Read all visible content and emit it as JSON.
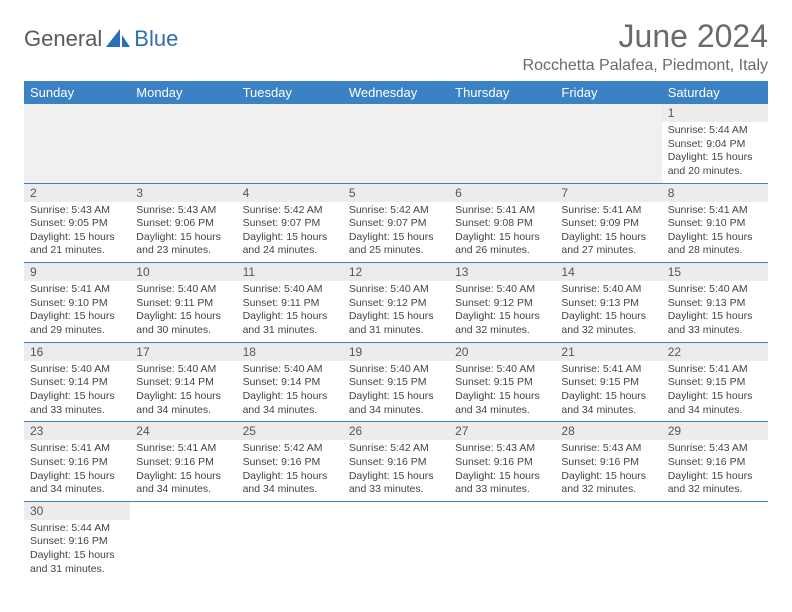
{
  "logo": {
    "text1": "General",
    "text2": "Blue"
  },
  "title": "June 2024",
  "location": "Rocchetta Palafea, Piedmont, Italy",
  "colors": {
    "header_bg": "#3b82c4",
    "header_text": "#ffffff",
    "daynum_bg": "#ececec",
    "cell_border": "#3b82c4",
    "text": "#444444",
    "title_color": "#6a6a6a"
  },
  "weekdays": [
    "Sunday",
    "Monday",
    "Tuesday",
    "Wednesday",
    "Thursday",
    "Friday",
    "Saturday"
  ],
  "days": [
    {
      "n": 1,
      "sr": "5:44 AM",
      "ss": "9:04 PM",
      "dl": "15 hours and 20 minutes."
    },
    {
      "n": 2,
      "sr": "5:43 AM",
      "ss": "9:05 PM",
      "dl": "15 hours and 21 minutes."
    },
    {
      "n": 3,
      "sr": "5:43 AM",
      "ss": "9:06 PM",
      "dl": "15 hours and 23 minutes."
    },
    {
      "n": 4,
      "sr": "5:42 AM",
      "ss": "9:07 PM",
      "dl": "15 hours and 24 minutes."
    },
    {
      "n": 5,
      "sr": "5:42 AM",
      "ss": "9:07 PM",
      "dl": "15 hours and 25 minutes."
    },
    {
      "n": 6,
      "sr": "5:41 AM",
      "ss": "9:08 PM",
      "dl": "15 hours and 26 minutes."
    },
    {
      "n": 7,
      "sr": "5:41 AM",
      "ss": "9:09 PM",
      "dl": "15 hours and 27 minutes."
    },
    {
      "n": 8,
      "sr": "5:41 AM",
      "ss": "9:10 PM",
      "dl": "15 hours and 28 minutes."
    },
    {
      "n": 9,
      "sr": "5:41 AM",
      "ss": "9:10 PM",
      "dl": "15 hours and 29 minutes."
    },
    {
      "n": 10,
      "sr": "5:40 AM",
      "ss": "9:11 PM",
      "dl": "15 hours and 30 minutes."
    },
    {
      "n": 11,
      "sr": "5:40 AM",
      "ss": "9:11 PM",
      "dl": "15 hours and 31 minutes."
    },
    {
      "n": 12,
      "sr": "5:40 AM",
      "ss": "9:12 PM",
      "dl": "15 hours and 31 minutes."
    },
    {
      "n": 13,
      "sr": "5:40 AM",
      "ss": "9:12 PM",
      "dl": "15 hours and 32 minutes."
    },
    {
      "n": 14,
      "sr": "5:40 AM",
      "ss": "9:13 PM",
      "dl": "15 hours and 32 minutes."
    },
    {
      "n": 15,
      "sr": "5:40 AM",
      "ss": "9:13 PM",
      "dl": "15 hours and 33 minutes."
    },
    {
      "n": 16,
      "sr": "5:40 AM",
      "ss": "9:14 PM",
      "dl": "15 hours and 33 minutes."
    },
    {
      "n": 17,
      "sr": "5:40 AM",
      "ss": "9:14 PM",
      "dl": "15 hours and 34 minutes."
    },
    {
      "n": 18,
      "sr": "5:40 AM",
      "ss": "9:14 PM",
      "dl": "15 hours and 34 minutes."
    },
    {
      "n": 19,
      "sr": "5:40 AM",
      "ss": "9:15 PM",
      "dl": "15 hours and 34 minutes."
    },
    {
      "n": 20,
      "sr": "5:40 AM",
      "ss": "9:15 PM",
      "dl": "15 hours and 34 minutes."
    },
    {
      "n": 21,
      "sr": "5:41 AM",
      "ss": "9:15 PM",
      "dl": "15 hours and 34 minutes."
    },
    {
      "n": 22,
      "sr": "5:41 AM",
      "ss": "9:15 PM",
      "dl": "15 hours and 34 minutes."
    },
    {
      "n": 23,
      "sr": "5:41 AM",
      "ss": "9:16 PM",
      "dl": "15 hours and 34 minutes."
    },
    {
      "n": 24,
      "sr": "5:41 AM",
      "ss": "9:16 PM",
      "dl": "15 hours and 34 minutes."
    },
    {
      "n": 25,
      "sr": "5:42 AM",
      "ss": "9:16 PM",
      "dl": "15 hours and 34 minutes."
    },
    {
      "n": 26,
      "sr": "5:42 AM",
      "ss": "9:16 PM",
      "dl": "15 hours and 33 minutes."
    },
    {
      "n": 27,
      "sr": "5:43 AM",
      "ss": "9:16 PM",
      "dl": "15 hours and 33 minutes."
    },
    {
      "n": 28,
      "sr": "5:43 AM",
      "ss": "9:16 PM",
      "dl": "15 hours and 32 minutes."
    },
    {
      "n": 29,
      "sr": "5:43 AM",
      "ss": "9:16 PM",
      "dl": "15 hours and 32 minutes."
    },
    {
      "n": 30,
      "sr": "5:44 AM",
      "ss": "9:16 PM",
      "dl": "15 hours and 31 minutes."
    }
  ],
  "labels": {
    "sunrise": "Sunrise: ",
    "sunset": "Sunset: ",
    "daylight": "Daylight: "
  },
  "first_weekday_index": 6
}
